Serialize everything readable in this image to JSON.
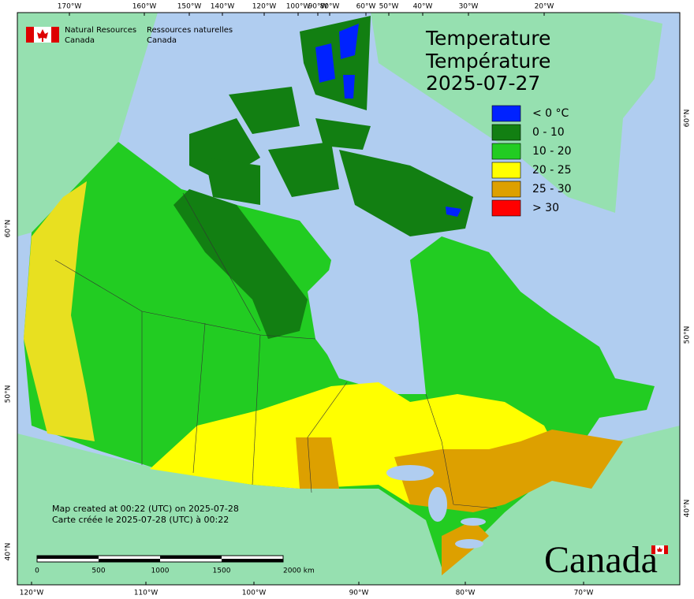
{
  "header": {
    "agency_en": [
      "Natural Resources",
      "Canada"
    ],
    "agency_fr": [
      "Ressources naturelles",
      "Canada"
    ]
  },
  "title": [
    "Temperature",
    "Température",
    "2025-07-27"
  ],
  "legend": [
    {
      "label": "< 0 °C",
      "color": "#0022ff"
    },
    {
      "label": "0 - 10",
      "color": "#127f12"
    },
    {
      "label": "10 - 20",
      "color": "#22cc22"
    },
    {
      "label": "20 - 25",
      "color": "#ffff00"
    },
    {
      "label": "25 - 30",
      "color": "#dda000"
    },
    {
      "label": "> 30",
      "color": "#ff0000"
    }
  ],
  "axes": {
    "top": [
      "170°W",
      "160°W",
      "150°W",
      "140°W",
      "120°W",
      "100°W",
      "90°W",
      "80°W",
      "60°W",
      "50°W",
      "40°W",
      "30°W",
      "20°W"
    ],
    "bottom": [
      "120°W",
      "110°W",
      "100°W",
      "90°W",
      "80°W",
      "70°W"
    ],
    "left": [
      "60°N",
      "50°N",
      "40°N"
    ],
    "right": [
      "60°N",
      "50°N",
      "40°N"
    ]
  },
  "notes": [
    "Map created at 00:22 (UTC) on 2025-07-28",
    "Carte créée le 2025-07-28 (UTC) à 00:22"
  ],
  "scale_bar": [
    "0",
    "500",
    "1000",
    "1500",
    "2000 km"
  ],
  "wordmark": "Canada"
}
